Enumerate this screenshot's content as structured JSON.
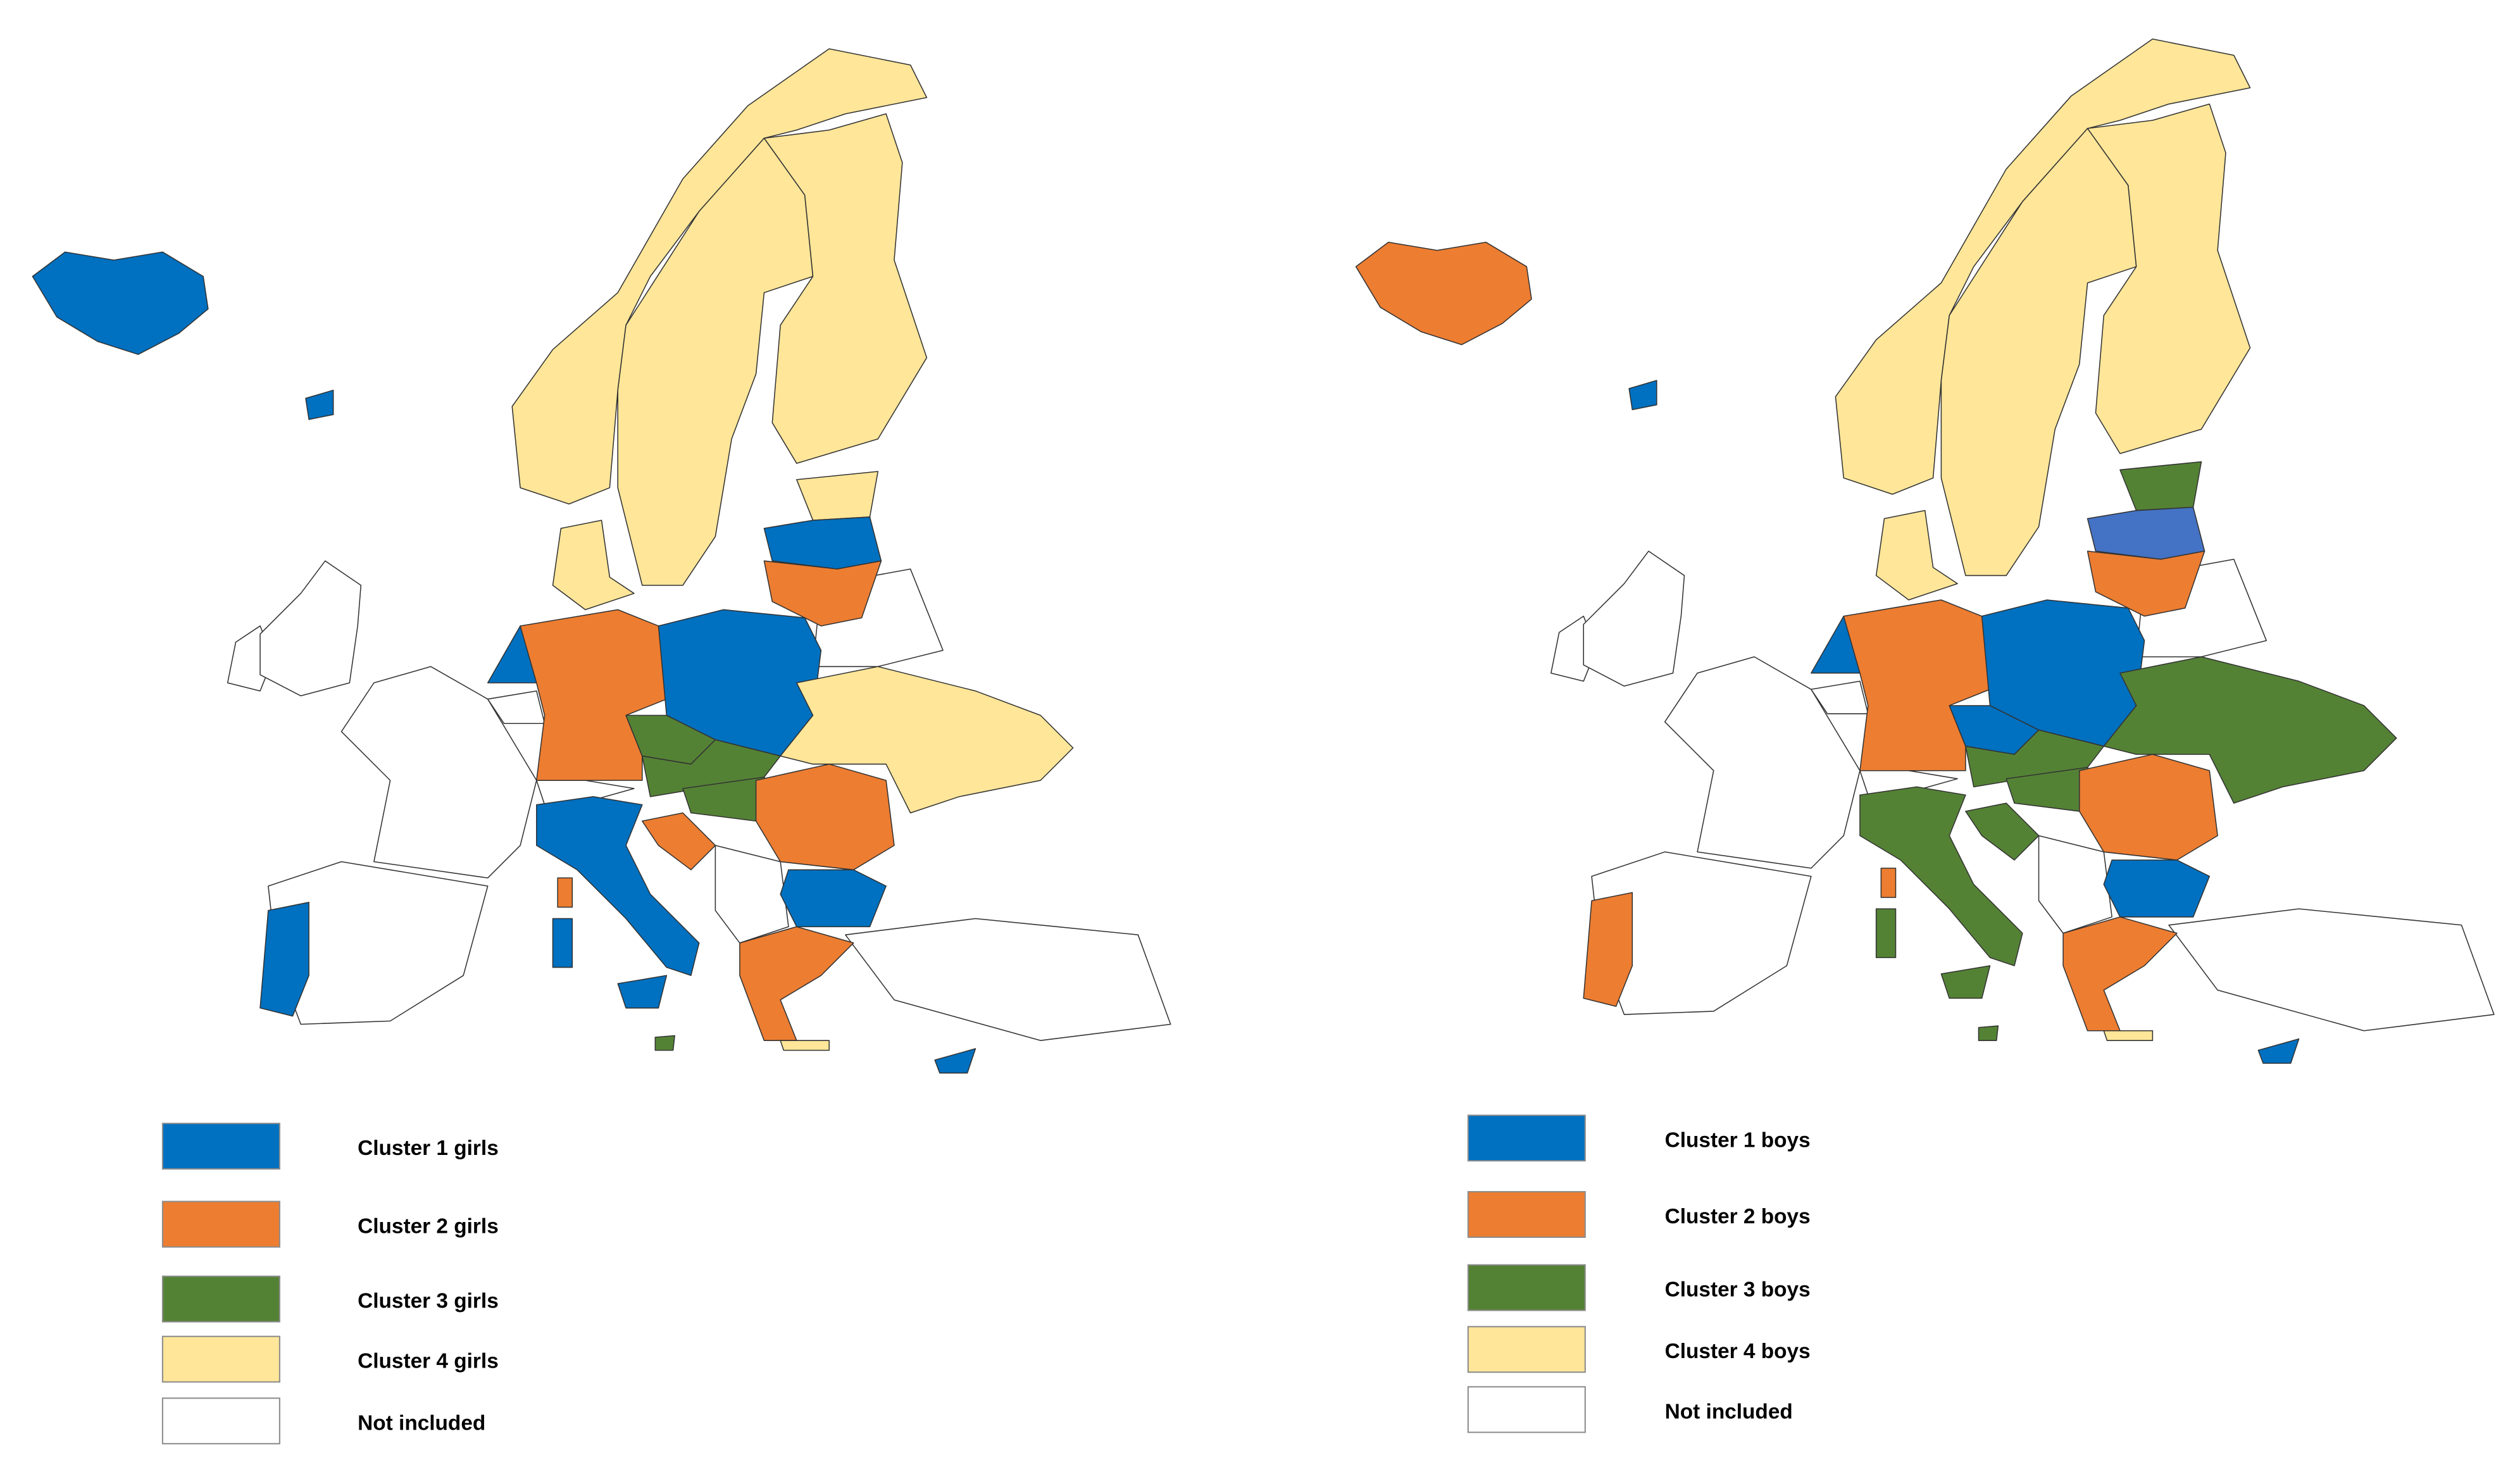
{
  "maps": [
    {
      "legend": [
        {
          "label": "Cluster 1 girls",
          "color": "#0070c0"
        },
        {
          "label": "Cluster 2 girls",
          "color": "#ed7d31"
        },
        {
          "label": "Cluster 3 girls",
          "color": "#548235"
        },
        {
          "label": "Cluster 4 girls",
          "color": "#ffe699"
        },
        {
          "label": "Not included",
          "color": "#ffffff"
        }
      ]
    },
    {
      "legend": [
        {
          "label": "Cluster 1 boys",
          "color": "#0070c0"
        },
        {
          "label": "Cluster 2 boys",
          "color": "#ed7d31"
        },
        {
          "label": "Cluster 3 boys",
          "color": "#548235"
        },
        {
          "label": "Cluster 4 boys",
          "color": "#ffe699"
        },
        {
          "label": "Not included",
          "color": "#ffffff"
        }
      ]
    }
  ]
}
